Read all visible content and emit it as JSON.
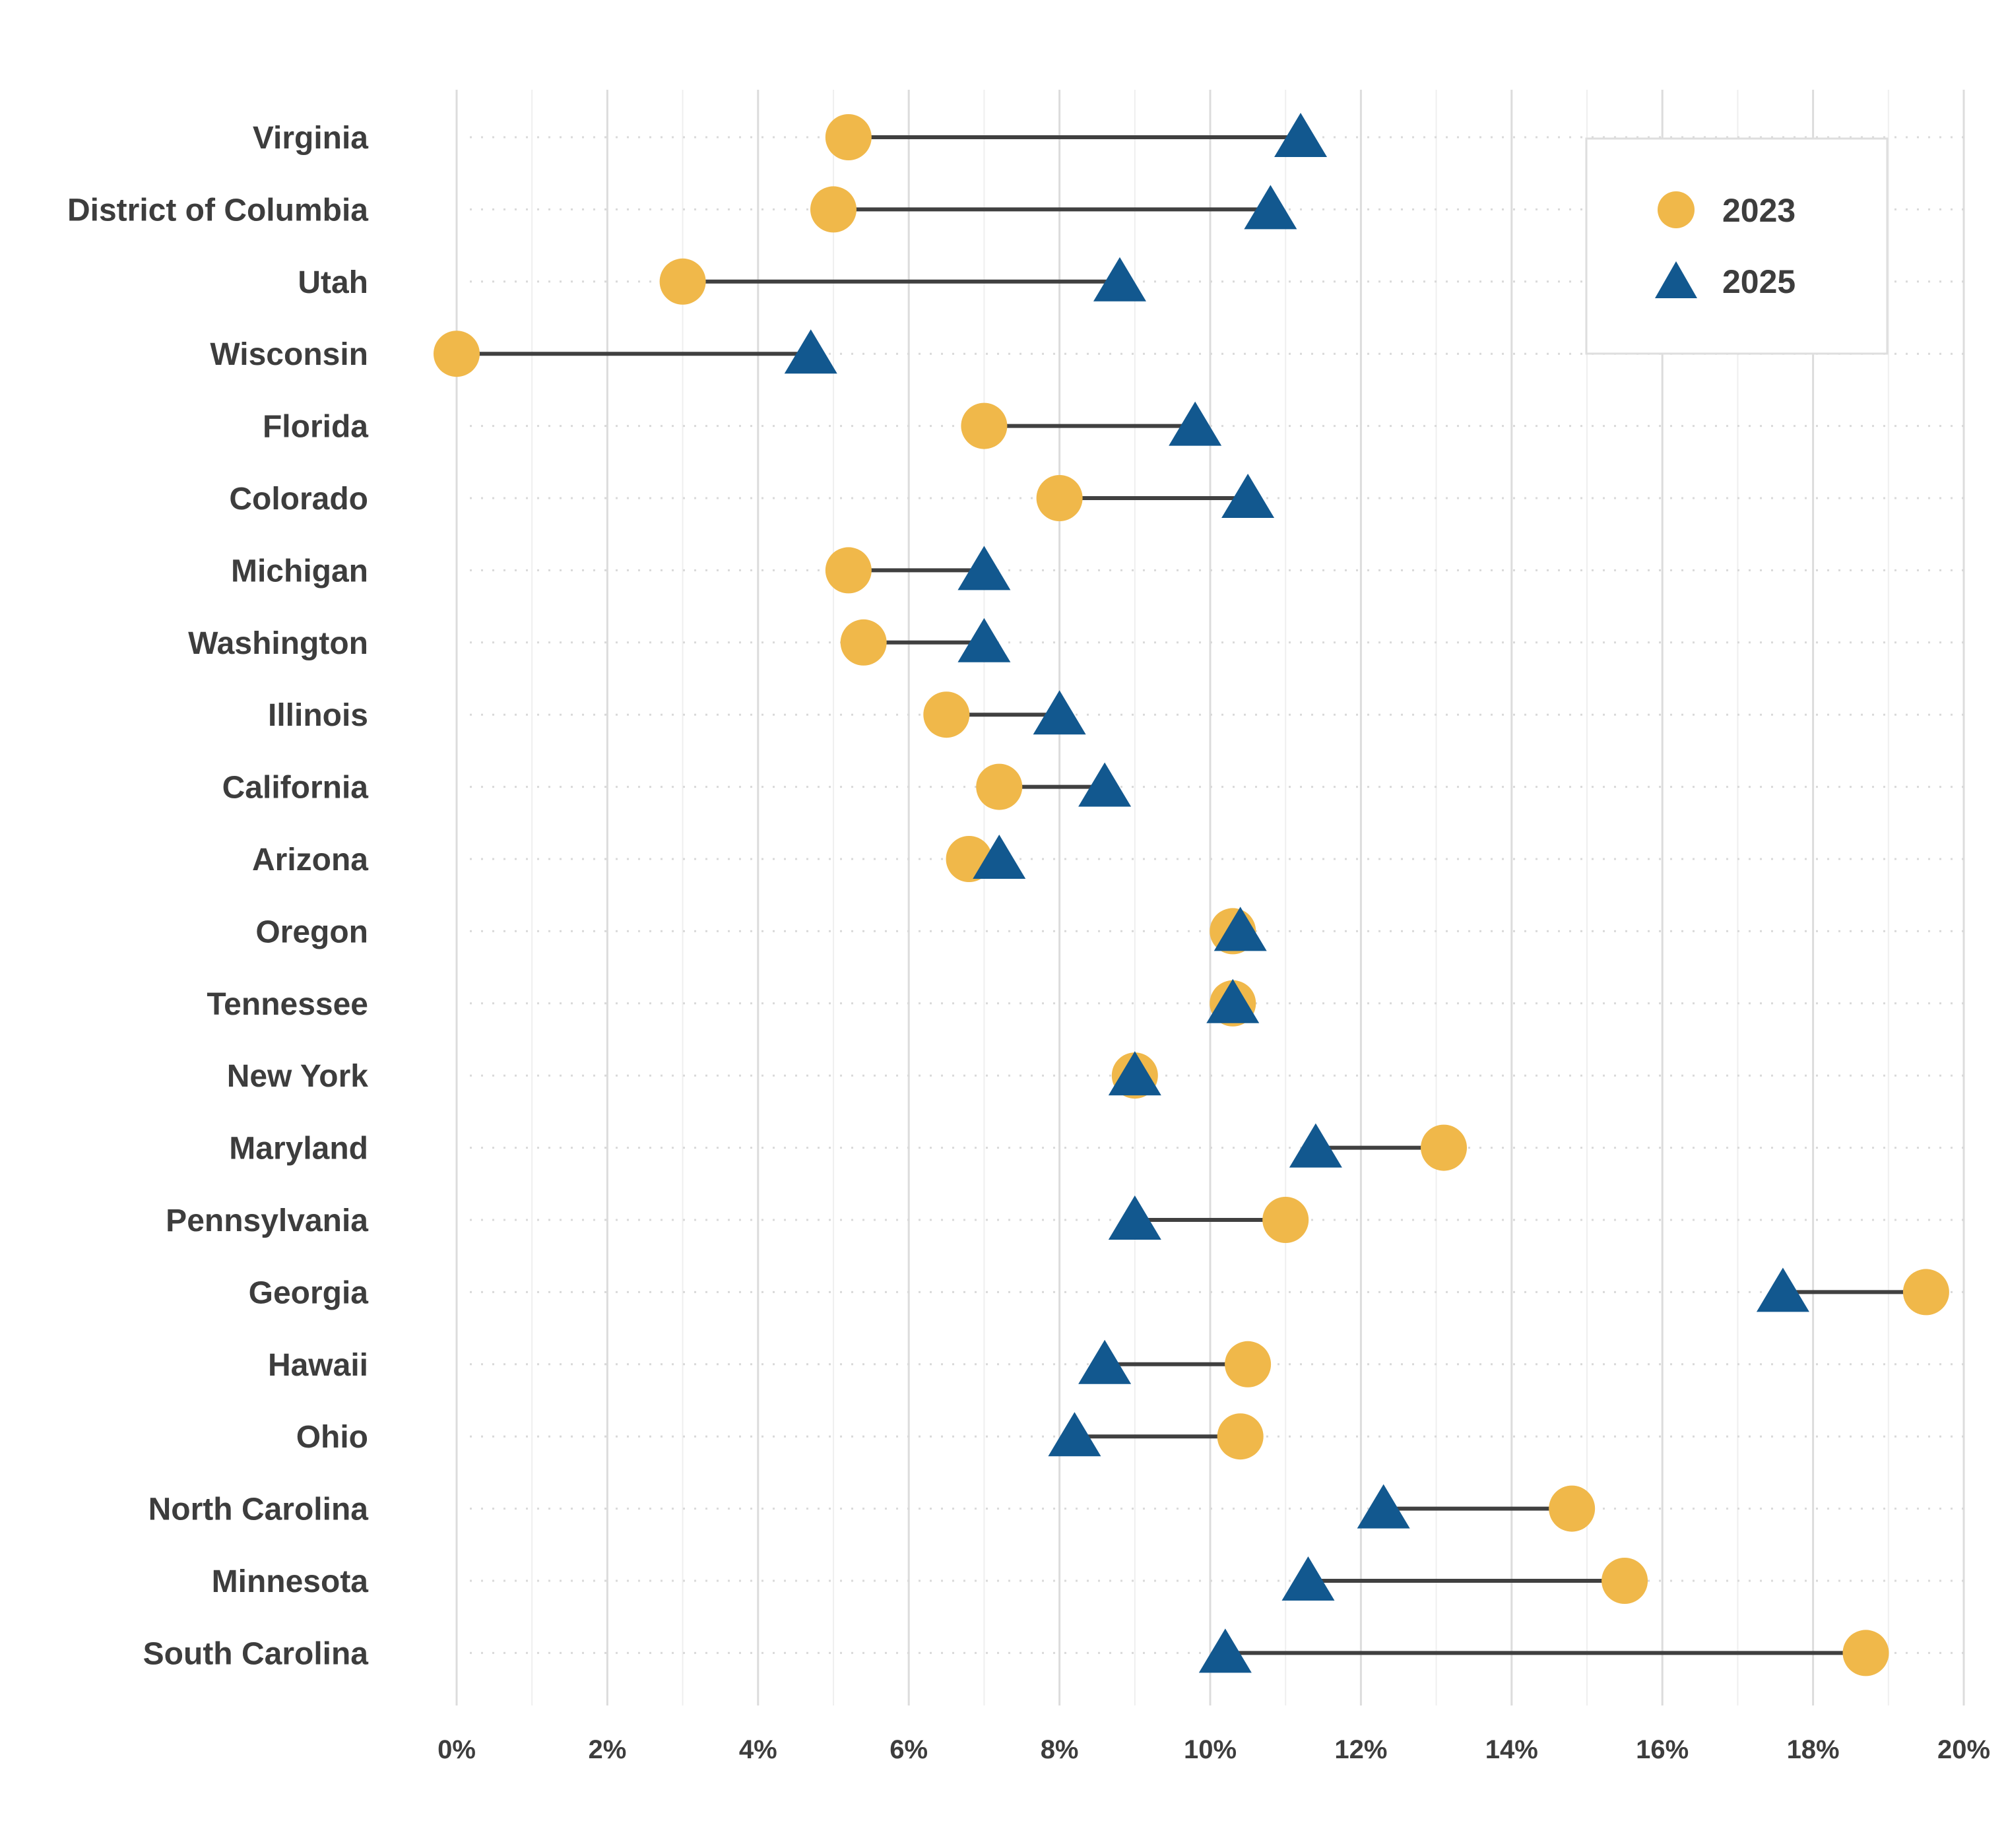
{
  "chart_data": {
    "type": "dumbbell",
    "title": "",
    "xlabel": "",
    "ylabel": "",
    "xlim": [
      0,
      20
    ],
    "x_ticks": [
      0,
      2,
      4,
      6,
      8,
      10,
      12,
      14,
      16,
      18,
      20
    ],
    "x_tick_labels": [
      "0%",
      "2%",
      "4%",
      "6%",
      "8%",
      "10%",
      "12%",
      "14%",
      "16%",
      "18%",
      "20%"
    ],
    "grid": true,
    "legend_position": "top-right",
    "colors": {
      "s2023": "#f0b84a",
      "s2025": "#12588f",
      "connector": "#404040",
      "grid": "#dcdcdc",
      "text": "#3d3d3d"
    },
    "categories": [
      "Virginia",
      "District of Columbia",
      "Utah",
      "Wisconsin",
      "Florida",
      "Colorado",
      "Michigan",
      "Washington",
      "Illinois",
      "California",
      "Arizona",
      "Oregon",
      "Tennessee",
      "New York",
      "Maryland",
      "Pennsylvania",
      "Georgia",
      "Hawaii",
      "Ohio",
      "North Carolina",
      "Minnesota",
      "South Carolina"
    ],
    "series": [
      {
        "name": "2023",
        "marker": "circle",
        "values": [
          5.2,
          5.0,
          3.0,
          0.0,
          7.0,
          8.0,
          5.2,
          5.4,
          6.5,
          7.2,
          6.8,
          10.3,
          10.3,
          9.0,
          13.1,
          11.0,
          19.5,
          10.5,
          10.4,
          14.8,
          15.5,
          18.7
        ]
      },
      {
        "name": "2025",
        "marker": "triangle",
        "values": [
          11.2,
          10.8,
          8.8,
          4.7,
          9.8,
          10.5,
          7.0,
          7.0,
          8.0,
          8.6,
          7.2,
          10.4,
          10.3,
          9.0,
          11.4,
          9.0,
          17.6,
          8.6,
          8.2,
          12.3,
          11.3,
          10.2
        ]
      }
    ]
  }
}
